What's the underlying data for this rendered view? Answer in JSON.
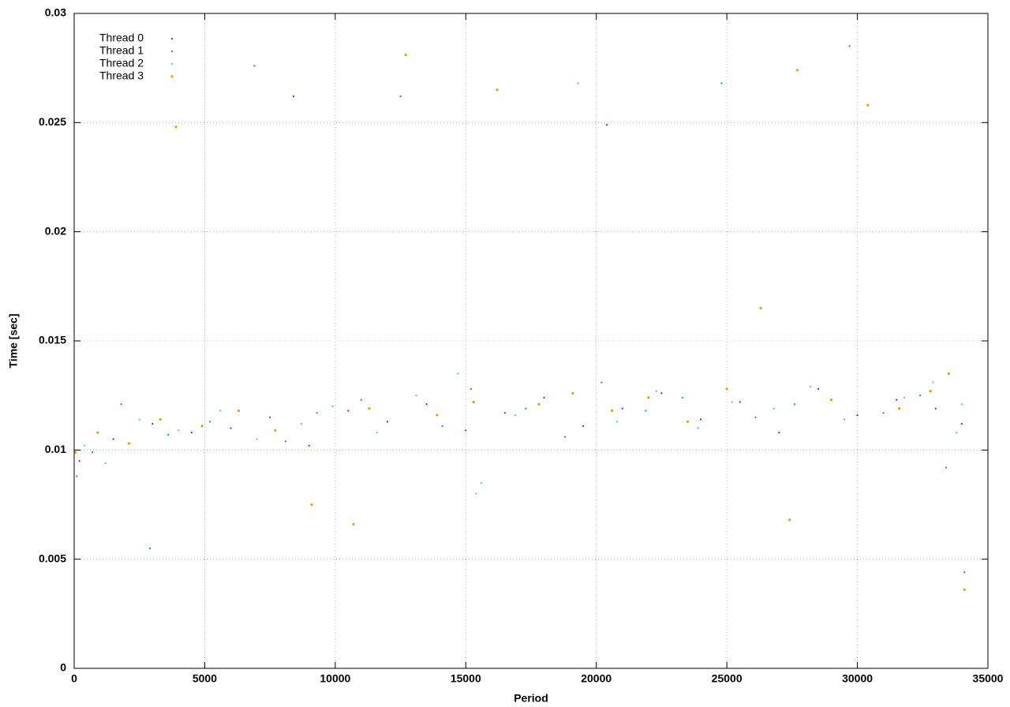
{
  "chart_data": {
    "type": "scatter",
    "xlabel": "Period",
    "ylabel": "Time [sec]",
    "xlim": [
      0,
      35000
    ],
    "ylim": [
      0,
      0.03
    ],
    "xticks": [
      0,
      5000,
      10000,
      15000,
      20000,
      25000,
      30000,
      35000
    ],
    "yticks": [
      0,
      0.005,
      0.01,
      0.015,
      0.02,
      0.025,
      0.03
    ],
    "grid": true,
    "legend": "top-left",
    "series": [
      {
        "name": "Thread 0",
        "color": "#9400d3",
        "x": [
          200,
          1500,
          3000,
          4500,
          6000,
          7500,
          9000,
          10500,
          12000,
          13500,
          15000,
          16500,
          18000,
          19500,
          21000,
          22500,
          24000,
          25500,
          27000,
          28500,
          30000,
          31500,
          33000,
          34000,
          8400,
          20400
        ],
        "y": [
          0.0095,
          0.0105,
          0.0112,
          0.0108,
          0.011,
          0.0115,
          0.0102,
          0.0118,
          0.0113,
          0.0121,
          0.0109,
          0.0117,
          0.0124,
          0.0111,
          0.0119,
          0.0126,
          0.0114,
          0.0122,
          0.0108,
          0.0128,
          0.0116,
          0.0123,
          0.0119,
          0.0112,
          0.0262,
          0.0249
        ]
      },
      {
        "name": "Thread 1",
        "color": "#009e73",
        "x": [
          100,
          700,
          1800,
          2900,
          3600,
          5200,
          6900,
          8100,
          9300,
          11000,
          12500,
          14100,
          15200,
          17300,
          18800,
          20200,
          21900,
          23300,
          24800,
          26100,
          27600,
          29700,
          31000,
          32400,
          33400,
          34100
        ],
        "y": [
          0.0088,
          0.0099,
          0.0121,
          0.0055,
          0.0107,
          0.0113,
          0.0276,
          0.0104,
          0.0117,
          0.0123,
          0.0262,
          0.0111,
          0.0128,
          0.0119,
          0.0106,
          0.0131,
          0.0118,
          0.0124,
          0.0268,
          0.0115,
          0.0121,
          0.0285,
          0.0117,
          0.0125,
          0.0092,
          0.0044
        ]
      },
      {
        "name": "Thread 2",
        "color": "#56b4e9",
        "x": [
          400,
          1200,
          2500,
          4000,
          5600,
          7000,
          8700,
          9900,
          11600,
          13100,
          14700,
          15400,
          15600,
          16900,
          19300,
          20800,
          22300,
          23900,
          25200,
          26800,
          28200,
          29500,
          31800,
          32900,
          33800,
          34000
        ],
        "y": [
          0.0102,
          0.0094,
          0.0114,
          0.0109,
          0.0118,
          0.0105,
          0.0112,
          0.012,
          0.0108,
          0.0125,
          0.0135,
          0.008,
          0.0085,
          0.0116,
          0.0268,
          0.0113,
          0.0127,
          0.011,
          0.0122,
          0.0119,
          0.0129,
          0.0114,
          0.0124,
          0.0131,
          0.0108,
          0.0121
        ]
      },
      {
        "name": "Thread 3",
        "color": "#e69f00",
        "x": [
          50,
          900,
          2100,
          3300,
          3900,
          4900,
          6300,
          7700,
          9100,
          10700,
          11300,
          12700,
          13900,
          15300,
          16200,
          17800,
          19100,
          20600,
          22000,
          23500,
          25000,
          26300,
          27400,
          27700,
          29000,
          30400,
          31600,
          32800,
          33500,
          34100
        ],
        "y": [
          0.0099,
          0.0108,
          0.0103,
          0.0114,
          0.0248,
          0.0111,
          0.0118,
          0.0109,
          0.0075,
          0.0066,
          0.0119,
          0.0281,
          0.0116,
          0.0122,
          0.0265,
          0.0121,
          0.0126,
          0.0118,
          0.0124,
          0.0113,
          0.0128,
          0.0165,
          0.0068,
          0.0274,
          0.0123,
          0.0258,
          0.0119,
          0.0127,
          0.0135,
          0.0036
        ]
      }
    ]
  }
}
